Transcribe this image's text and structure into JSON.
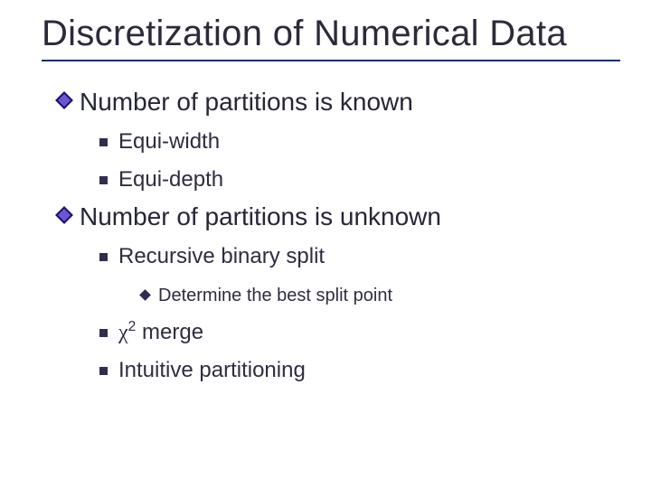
{
  "title": "Discretization of Numerical Data",
  "colors": {
    "underline": "#0b2b85",
    "title_text": "#2b2b3a",
    "body_text": "#262638",
    "diamond_fill": "#6a55d6",
    "diamond_border": "#1a0f6a",
    "square_fill": "#2f2d50",
    "background": "#ffffff"
  },
  "typography": {
    "title_fontsize": 40,
    "lvl1_fontsize": 28,
    "lvl2_fontsize": 24,
    "lvl3_fontsize": 20,
    "font_family": "Verdana"
  },
  "section1": {
    "heading": "Number of partitions is known",
    "item1": "Equi-width",
    "item2": "Equi-depth"
  },
  "section2": {
    "heading": "Number of partitions is unknown",
    "item1": "Recursive binary split",
    "item1_sub": "Determine the best split point",
    "item2_prefix": "χ",
    "item2_sup": "2",
    "item2_rest": " merge",
    "item3": "Intuitive partitioning"
  }
}
